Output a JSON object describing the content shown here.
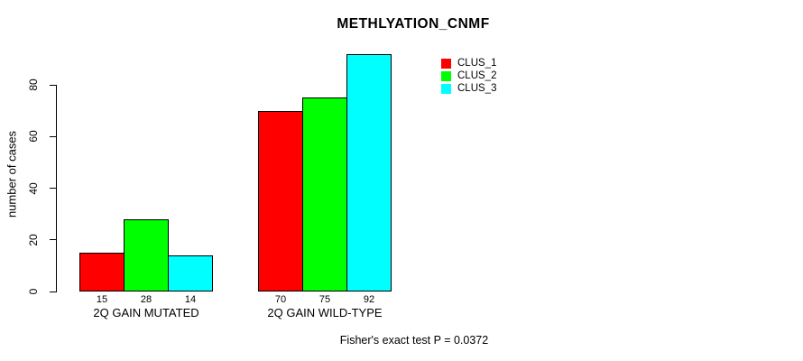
{
  "chart_data": {
    "type": "bar",
    "title": "METHLYATION_CNMF",
    "xlabel": "",
    "ylabel": "number of cases",
    "categories": [
      "2Q GAIN MUTATED",
      "2Q GAIN WILD-TYPE"
    ],
    "series": [
      {
        "name": "CLUS_1",
        "color": "#FF0000",
        "values": [
          15,
          70
        ]
      },
      {
        "name": "CLUS_2",
        "color": "#00FF00",
        "values": [
          28,
          75
        ]
      },
      {
        "name": "CLUS_3",
        "color": "#00FFFF",
        "values": [
          14,
          92
        ]
      }
    ],
    "yticks": [
      0,
      20,
      40,
      60,
      80
    ],
    "ylim": [
      0,
      92
    ],
    "grid": false,
    "bar_value_labels_shown": true,
    "legend": {
      "position": "top-right",
      "entries": [
        {
          "label": "CLUS_1",
          "color": "#FF0000"
        },
        {
          "label": "CLUS_2",
          "color": "#00FF00"
        },
        {
          "label": "CLUS_3",
          "color": "#00FFFF"
        }
      ]
    },
    "annotation": "Fisher's exact test P = 0.0372",
    "axis_color": "#000000",
    "bar_border_color": "#000000",
    "background_color": "#FFFFFF"
  }
}
